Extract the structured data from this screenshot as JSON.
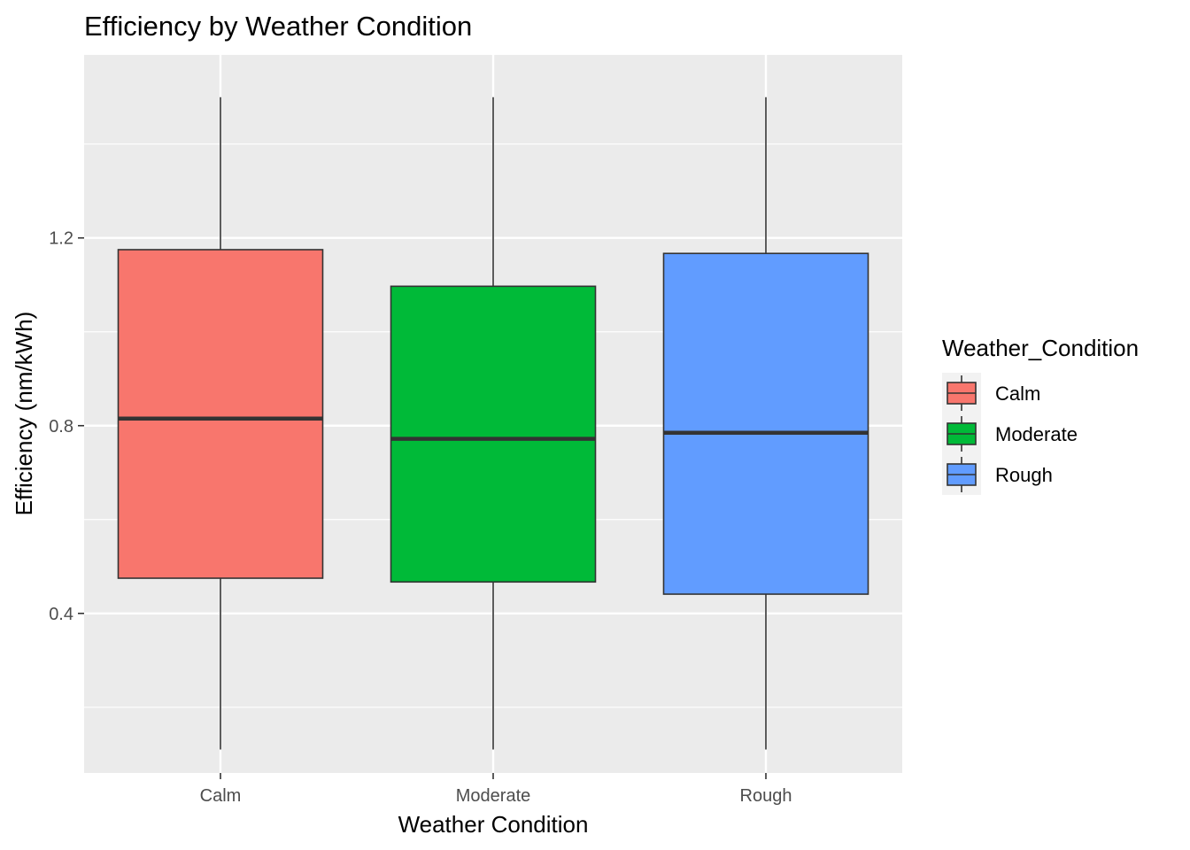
{
  "chart_data": {
    "type": "boxplot",
    "title": "Efficiency by Weather Condition",
    "xlabel": "Weather Condition",
    "ylabel": "Efficiency (nm/kWh)",
    "categories": [
      "Calm",
      "Moderate",
      "Rough"
    ],
    "ylim": [
      0.06,
      1.59
    ],
    "yticks": [
      0.4,
      0.8,
      1.2
    ],
    "ytick_labels": [
      "0.4",
      "0.8",
      "1.2"
    ],
    "grid": true,
    "boxes": [
      {
        "category": "Calm",
        "min": 0.11,
        "q1": 0.475,
        "median": 0.815,
        "q3": 1.175,
        "max": 1.5
      },
      {
        "category": "Moderate",
        "min": 0.11,
        "q1": 0.467,
        "median": 0.772,
        "q3": 1.097,
        "max": 1.5
      },
      {
        "category": "Rough",
        "min": 0.11,
        "q1": 0.441,
        "median": 0.785,
        "q3": 1.167,
        "max": 1.5
      }
    ],
    "legend": {
      "title": "Weather_Condition",
      "position": "right",
      "entries": [
        "Calm",
        "Moderate",
        "Rough"
      ]
    },
    "colors": {
      "Calm": "#F8766D",
      "Moderate": "#00BA38",
      "Rough": "#619CFF",
      "panel_background": "#EBEBEB",
      "grid": "#FFFFFF",
      "box_outline": "#333333"
    }
  }
}
